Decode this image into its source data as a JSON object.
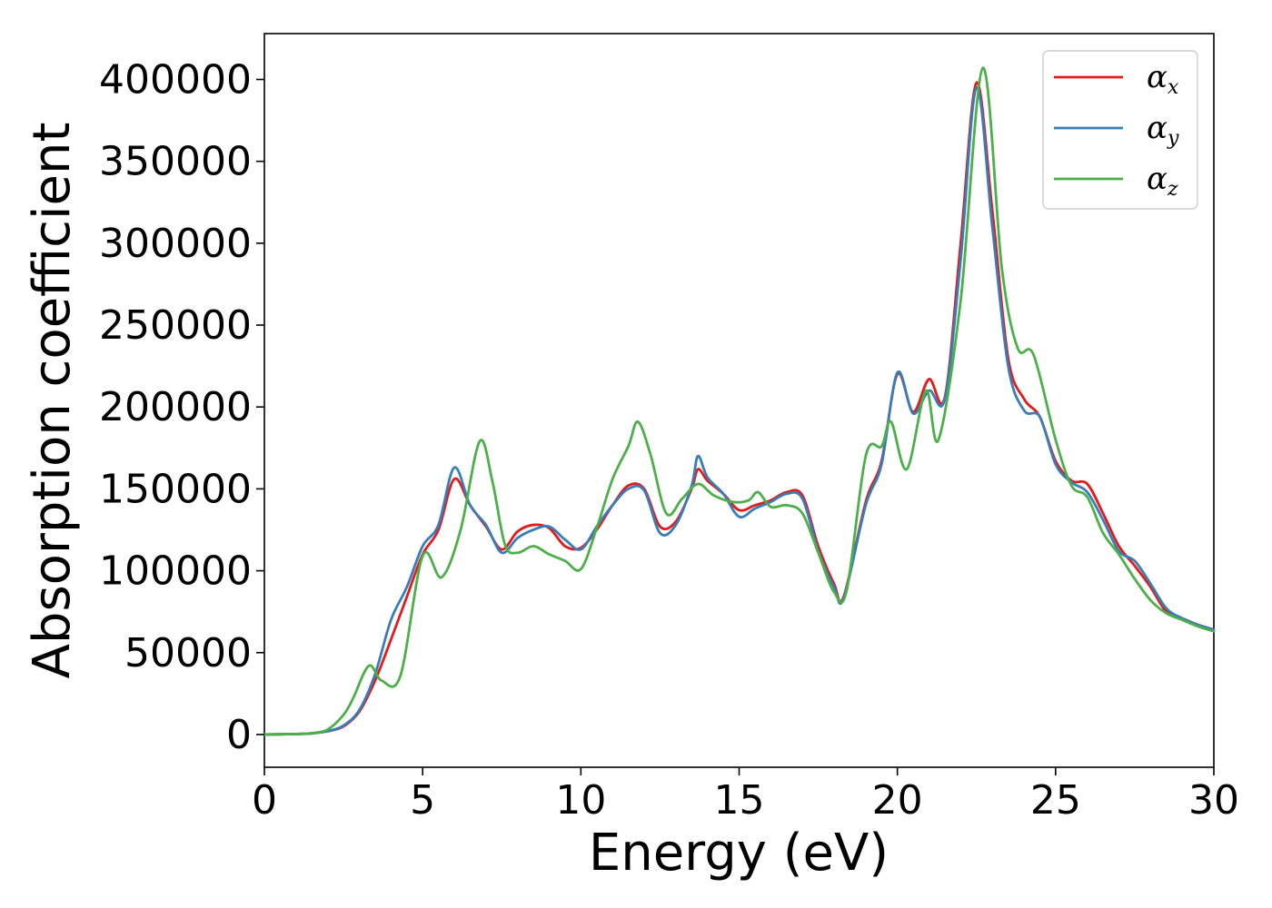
{
  "chart_data": {
    "type": "line",
    "title": "",
    "xlabel": "Energy (eV)",
    "ylabel": "Absorption coefficient",
    "xlim": [
      0,
      30
    ],
    "ylim": [
      -20000,
      428000
    ],
    "xticks": [
      0,
      5,
      10,
      15,
      20,
      25,
      30
    ],
    "yticks": [
      0,
      50000,
      100000,
      150000,
      200000,
      250000,
      300000,
      350000,
      400000
    ],
    "xtick_labels": [
      "0",
      "5",
      "10",
      "15",
      "20",
      "25",
      "30"
    ],
    "ytick_labels": [
      "0",
      "50000",
      "100000",
      "150000",
      "200000",
      "250000",
      "300000",
      "350000",
      "400000"
    ],
    "grid": false,
    "legend_position": "top-right",
    "series": [
      {
        "name": "αx",
        "symbol": "α",
        "subscript": "x",
        "color": "#e41a1c",
        "points": [
          [
            0,
            0
          ],
          [
            1,
            300
          ],
          [
            1.5,
            700
          ],
          [
            2,
            2000
          ],
          [
            2.5,
            5000
          ],
          [
            3,
            14000
          ],
          [
            3.5,
            33000
          ],
          [
            4,
            58000
          ],
          [
            4.5,
            84000
          ],
          [
            5,
            110000
          ],
          [
            5.5,
            125000
          ],
          [
            6,
            156000
          ],
          [
            6.5,
            140000
          ],
          [
            7,
            127000
          ],
          [
            7.5,
            113000
          ],
          [
            8,
            124000
          ],
          [
            8.5,
            128000
          ],
          [
            9,
            126000
          ],
          [
            9.5,
            115000
          ],
          [
            10,
            114000
          ],
          [
            10.5,
            125000
          ],
          [
            11,
            140000
          ],
          [
            11.5,
            152000
          ],
          [
            12,
            150000
          ],
          [
            12.5,
            127000
          ],
          [
            13,
            130000
          ],
          [
            13.5,
            150000
          ],
          [
            13.7,
            162000
          ],
          [
            14,
            155000
          ],
          [
            14.5,
            147000
          ],
          [
            15,
            137000
          ],
          [
            15.5,
            140000
          ],
          [
            16,
            143000
          ],
          [
            16.5,
            148000
          ],
          [
            17,
            146000
          ],
          [
            17.5,
            115000
          ],
          [
            18,
            92000
          ],
          [
            18.3,
            84000
          ],
          [
            19,
            142000
          ],
          [
            19.5,
            167000
          ],
          [
            20,
            220000
          ],
          [
            20.5,
            197000
          ],
          [
            21,
            217000
          ],
          [
            21.5,
            206000
          ],
          [
            22,
            300000
          ],
          [
            22.5,
            398000
          ],
          [
            23,
            320000
          ],
          [
            23.5,
            230000
          ],
          [
            24,
            205000
          ],
          [
            24.5,
            194000
          ],
          [
            25,
            167000
          ],
          [
            25.5,
            155000
          ],
          [
            26,
            153000
          ],
          [
            26.5,
            135000
          ],
          [
            27,
            115000
          ],
          [
            27.5,
            103000
          ],
          [
            28,
            90000
          ],
          [
            28.5,
            75000
          ],
          [
            29,
            71000
          ],
          [
            29.5,
            67000
          ],
          [
            30,
            64000
          ]
        ]
      },
      {
        "name": "αy",
        "symbol": "α",
        "subscript": "y",
        "color": "#377eb8",
        "points": [
          [
            0,
            0
          ],
          [
            1,
            300
          ],
          [
            1.5,
            700
          ],
          [
            2,
            2000
          ],
          [
            2.5,
            5500
          ],
          [
            3,
            15000
          ],
          [
            3.5,
            37000
          ],
          [
            4,
            70000
          ],
          [
            4.5,
            90000
          ],
          [
            5,
            115000
          ],
          [
            5.5,
            128000
          ],
          [
            6,
            163000
          ],
          [
            6.5,
            140000
          ],
          [
            7,
            128000
          ],
          [
            7.5,
            111000
          ],
          [
            8,
            120000
          ],
          [
            8.5,
            125000
          ],
          [
            9,
            127000
          ],
          [
            9.5,
            119000
          ],
          [
            10,
            113000
          ],
          [
            10.5,
            127000
          ],
          [
            11,
            140000
          ],
          [
            11.5,
            150000
          ],
          [
            12,
            149000
          ],
          [
            12.5,
            123000
          ],
          [
            13,
            128000
          ],
          [
            13.5,
            152000
          ],
          [
            13.7,
            170000
          ],
          [
            14,
            157000
          ],
          [
            14.5,
            147000
          ],
          [
            15,
            133000
          ],
          [
            15.5,
            138000
          ],
          [
            16,
            142000
          ],
          [
            16.5,
            147000
          ],
          [
            17,
            144000
          ],
          [
            17.5,
            112000
          ],
          [
            18,
            90000
          ],
          [
            18.3,
            83000
          ],
          [
            19,
            140000
          ],
          [
            19.5,
            165000
          ],
          [
            20,
            221000
          ],
          [
            20.5,
            196000
          ],
          [
            21,
            210000
          ],
          [
            21.5,
            205000
          ],
          [
            22,
            290000
          ],
          [
            22.5,
            395000
          ],
          [
            23,
            310000
          ],
          [
            23.5,
            225000
          ],
          [
            24,
            198000
          ],
          [
            24.5,
            194000
          ],
          [
            25,
            165000
          ],
          [
            25.5,
            154000
          ],
          [
            26,
            148000
          ],
          [
            26.5,
            131000
          ],
          [
            27,
            112000
          ],
          [
            27.5,
            106000
          ],
          [
            28,
            92000
          ],
          [
            28.5,
            77000
          ],
          [
            29,
            71000
          ],
          [
            29.5,
            67000
          ],
          [
            30,
            64000
          ]
        ]
      },
      {
        "name": "αz",
        "symbol": "α",
        "subscript": "z",
        "color": "#4daf4a",
        "points": [
          [
            0,
            0
          ],
          [
            1,
            300
          ],
          [
            1.5,
            800
          ],
          [
            2,
            3000
          ],
          [
            2.5,
            12000
          ],
          [
            2.8,
            22000
          ],
          [
            3.3,
            42000
          ],
          [
            3.7,
            33000
          ],
          [
            4.3,
            36000
          ],
          [
            5,
            109000
          ],
          [
            5.6,
            96000
          ],
          [
            6.2,
            125000
          ],
          [
            6.8,
            179000
          ],
          [
            7.2,
            155000
          ],
          [
            7.6,
            116000
          ],
          [
            8,
            111000
          ],
          [
            8.5,
            115000
          ],
          [
            9,
            110000
          ],
          [
            9.5,
            106000
          ],
          [
            10,
            101000
          ],
          [
            10.5,
            126000
          ],
          [
            11,
            156000
          ],
          [
            11.5,
            176000
          ],
          [
            11.8,
            191000
          ],
          [
            12.2,
            171000
          ],
          [
            12.7,
            135000
          ],
          [
            13.2,
            144000
          ],
          [
            13.7,
            153000
          ],
          [
            14.2,
            146000
          ],
          [
            14.8,
            142000
          ],
          [
            15.3,
            143000
          ],
          [
            15.6,
            148000
          ],
          [
            16,
            139000
          ],
          [
            16.5,
            140000
          ],
          [
            17,
            135000
          ],
          [
            17.5,
            111000
          ],
          [
            18,
            87000
          ],
          [
            18.4,
            88000
          ],
          [
            19,
            170000
          ],
          [
            19.5,
            176000
          ],
          [
            19.8,
            191000
          ],
          [
            20.3,
            162000
          ],
          [
            20.9,
            210000
          ],
          [
            21.3,
            180000
          ],
          [
            22,
            265000
          ],
          [
            22.7,
            407000
          ],
          [
            23.3,
            285000
          ],
          [
            23.8,
            236000
          ],
          [
            24.3,
            232000
          ],
          [
            25,
            180000
          ],
          [
            25.5,
            152000
          ],
          [
            26,
            145000
          ],
          [
            26.5,
            123000
          ],
          [
            27,
            110000
          ],
          [
            27.5,
            95000
          ],
          [
            28,
            82000
          ],
          [
            28.5,
            74000
          ],
          [
            29,
            70000
          ],
          [
            29.5,
            66000
          ],
          [
            30,
            63000
          ]
        ]
      }
    ]
  }
}
